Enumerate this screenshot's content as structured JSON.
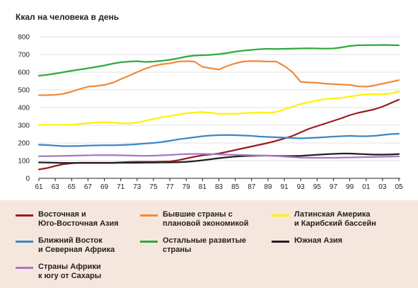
{
  "chart_data": {
    "type": "line",
    "title": "Ккал на человека в день",
    "xlabel": "",
    "ylabel": "",
    "ylim": [
      0,
      800
    ],
    "yticks": [
      0,
      100,
      200,
      300,
      400,
      500,
      600,
      700,
      800
    ],
    "xlim": [
      1961,
      2005
    ],
    "xtick_labels": [
      "61",
      "63",
      "65",
      "67",
      "69",
      "71",
      "73",
      "75",
      "77",
      "79",
      "81",
      "83",
      "85",
      "87",
      "89",
      "91",
      "93",
      "95",
      "97",
      "99",
      "01",
      "03",
      "05"
    ],
    "grid": "horizontal",
    "x": [
      1961,
      1962,
      1963,
      1964,
      1965,
      1966,
      1967,
      1968,
      1969,
      1970,
      1971,
      1972,
      1973,
      1974,
      1975,
      1976,
      1977,
      1978,
      1979,
      1980,
      1981,
      1982,
      1983,
      1984,
      1985,
      1986,
      1987,
      1988,
      1989,
      1990,
      1991,
      1992,
      1993,
      1994,
      1995,
      1996,
      1997,
      1998,
      1999,
      2000,
      2001,
      2002,
      2003,
      2004,
      2005
    ],
    "series": [
      {
        "name": "Восточная и Юго-Восточная Азия",
        "color": "#9b1b1f",
        "values": [
          50,
          58,
          70,
          80,
          85,
          88,
          88,
          88,
          88,
          88,
          90,
          92,
          93,
          93,
          93,
          94,
          95,
          102,
          112,
          122,
          130,
          135,
          140,
          150,
          160,
          170,
          180,
          190,
          200,
          212,
          225,
          240,
          260,
          280,
          295,
          310,
          325,
          340,
          357,
          370,
          380,
          390,
          405,
          425,
          445
        ]
      },
      {
        "name": "Бывшие страны с плановой экономикой",
        "color": "#f08a3a",
        "values": [
          470,
          470,
          472,
          478,
          490,
          505,
          518,
          522,
          528,
          540,
          560,
          580,
          600,
          620,
          635,
          645,
          650,
          660,
          662,
          660,
          630,
          622,
          615,
          635,
          650,
          660,
          663,
          662,
          660,
          660,
          635,
          600,
          545,
          542,
          540,
          535,
          532,
          530,
          528,
          520,
          518,
          525,
          535,
          545,
          555
        ]
      },
      {
        "name": "Латинская Америка и Карибский бассейн",
        "color": "#fff200",
        "values": [
          302,
          302,
          302,
          302,
          303,
          308,
          312,
          315,
          318,
          315,
          312,
          310,
          315,
          325,
          335,
          345,
          352,
          360,
          368,
          372,
          375,
          370,
          365,
          365,
          365,
          368,
          370,
          372,
          370,
          375,
          390,
          405,
          420,
          430,
          440,
          448,
          452,
          455,
          462,
          470,
          475,
          476,
          475,
          480,
          490
        ]
      },
      {
        "name": "Ближний Восток и Северная Африка",
        "color": "#3d86c6",
        "values": [
          190,
          188,
          185,
          182,
          182,
          183,
          185,
          186,
          187,
          187,
          188,
          190,
          193,
          197,
          200,
          205,
          212,
          220,
          226,
          232,
          238,
          242,
          244,
          245,
          244,
          242,
          240,
          236,
          234,
          232,
          230,
          228,
          226,
          228,
          230,
          233,
          236,
          238,
          240,
          238,
          238,
          240,
          245,
          250,
          252
        ]
      },
      {
        "name": "Остальные развитые страны",
        "color": "#2eaa3f",
        "values": [
          580,
          585,
          592,
          600,
          608,
          615,
          622,
          630,
          638,
          648,
          656,
          660,
          662,
          658,
          660,
          664,
          670,
          678,
          688,
          694,
          696,
          698,
          702,
          708,
          716,
          722,
          726,
          730,
          732,
          731,
          732,
          733,
          734,
          735,
          734,
          733,
          734,
          740,
          748,
          752,
          753,
          753,
          754,
          753,
          752
        ]
      },
      {
        "name": "Южная Азия",
        "color": "#231f20",
        "values": [
          90,
          89,
          88,
          87,
          87,
          87,
          87,
          87,
          87,
          87,
          88,
          88,
          88,
          89,
          89,
          90,
          90,
          91,
          93,
          97,
          102,
          108,
          114,
          119,
          123,
          126,
          127,
          128,
          128,
          127,
          126,
          126,
          127,
          130,
          133,
          136,
          138,
          140,
          140,
          138,
          136,
          134,
          134,
          135,
          137
        ]
      },
      {
        "name": "Страны Африки к югу от Сахары",
        "color": "#a678c4",
        "values": [
          125,
          125,
          126,
          127,
          128,
          129,
          130,
          131,
          131,
          131,
          130,
          129,
          128,
          127,
          128,
          130,
          132,
          135,
          137,
          138,
          138,
          137,
          135,
          134,
          133,
          132,
          130,
          129,
          128,
          126,
          123,
          120,
          117,
          116,
          116,
          116,
          116,
          117,
          118,
          119,
          120,
          121,
          122,
          123,
          124
        ]
      }
    ]
  },
  "legend": [
    {
      "label": "Восточная и\nЮго-Восточная Азия",
      "color": "#9b1b1f"
    },
    {
      "label": "Бывшие страны с\nплановой экономикой",
      "color": "#f08a3a"
    },
    {
      "label": "Латинская Америка\nи Карибский бассейн",
      "color": "#fff200"
    },
    {
      "label": "Ближний Восток\nи Северная Африка",
      "color": "#3d86c6"
    },
    {
      "label": "Остальные развитые\nстраны",
      "color": "#2eaa3f"
    },
    {
      "label": "Южная Азия",
      "color": "#231f20"
    },
    {
      "label": "Страны Африки\nк югу от Сахары",
      "color": "#a678c4"
    }
  ]
}
